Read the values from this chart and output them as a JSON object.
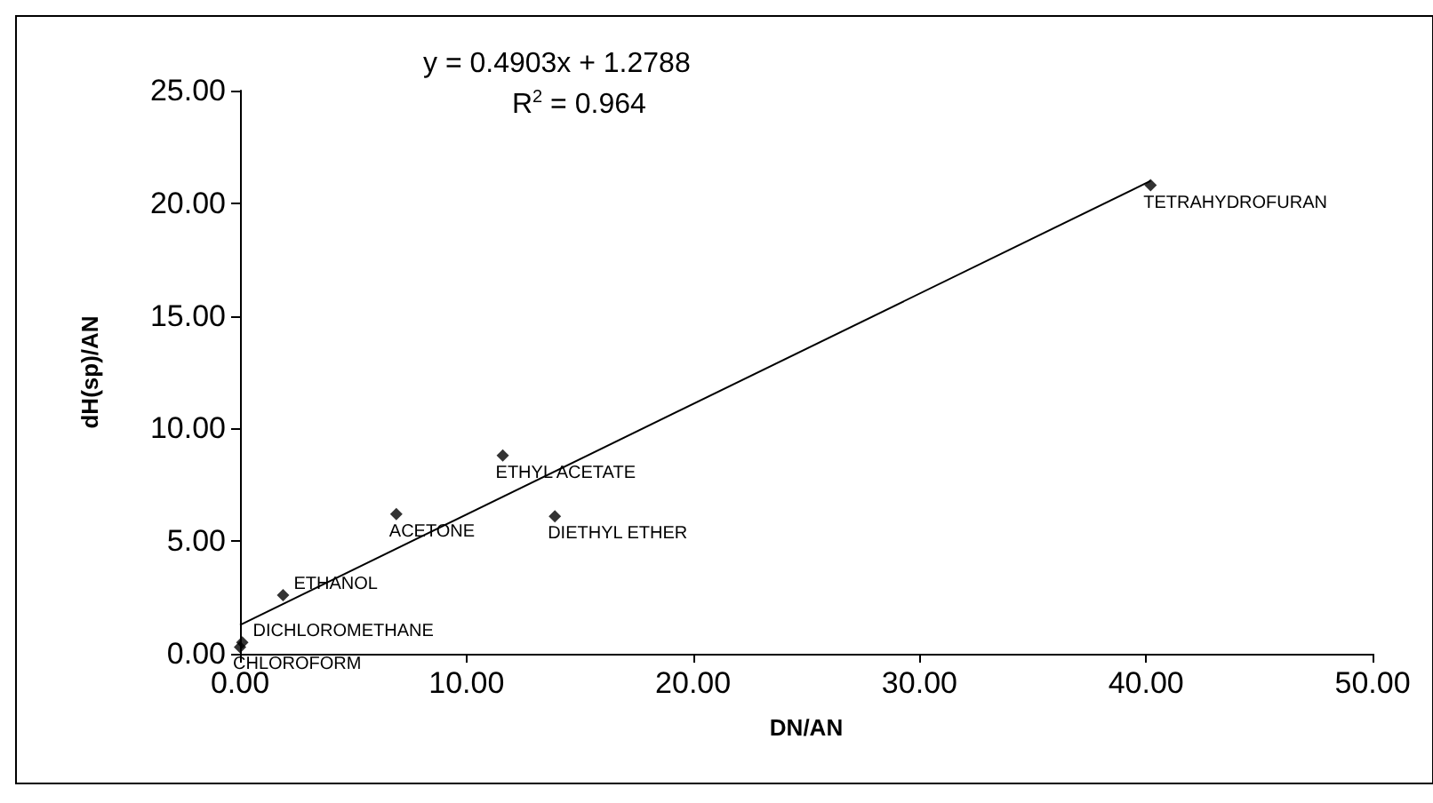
{
  "chart_data": {
    "type": "scatter",
    "xlabel": "DN/AN",
    "ylabel": "dH(sp)/AN",
    "marker": "diamond",
    "grid": false,
    "xlim": [
      0,
      50
    ],
    "ylim": [
      0,
      25
    ],
    "xticks": [
      {
        "value": 0,
        "label": "0.00"
      },
      {
        "value": 10,
        "label": "10.00"
      },
      {
        "value": 20,
        "label": "20.00"
      },
      {
        "value": 30,
        "label": "30.00"
      },
      {
        "value": 40,
        "label": "40.00"
      },
      {
        "value": 50,
        "label": "50.00"
      }
    ],
    "yticks": [
      {
        "value": 0,
        "label": "0.00"
      },
      {
        "value": 5,
        "label": "5.00"
      },
      {
        "value": 10,
        "label": "10.00"
      },
      {
        "value": 15,
        "label": "15.00"
      },
      {
        "value": 20,
        "label": "20.00"
      },
      {
        "value": 25,
        "label": "25.00"
      }
    ],
    "series": [
      {
        "type": "scatter",
        "color": "#000000",
        "x": [
          0,
          0.1,
          1.9,
          6.9,
          11.6,
          13.9,
          40.2
        ],
        "values": [
          0.3,
          0.5,
          2.6,
          6.2,
          8.8,
          6.1,
          20.8
        ]
      },
      {
        "type": "line",
        "color": "#000000",
        "marker": "none",
        "line_style": "solid",
        "x": [
          0,
          40.2
        ],
        "values": [
          1.28,
          20.99
        ]
      }
    ],
    "annotations": [
      "y = 0.4903x + 1.2788",
      "R$^{2}$ = 0.964",
      {
        "text": "CHLOROFORM",
        "x": 0,
        "y": 0.3
      },
      {
        "text": "DICHLOROMETHANE",
        "x": 0.1,
        "y": 0.5
      },
      {
        "text": "ETHANOL",
        "x": 1.9,
        "y": 2.6
      },
      {
        "text": "ACETONE",
        "x": 6.9,
        "y": 6.2
      },
      {
        "text": "ETHYL ACETATE",
        "x": 11.6,
        "y": 8.8
      },
      {
        "text": "DIETHYL ETHER",
        "x": 13.9,
        "y": 6.1
      },
      {
        "text": "TETRAHYDROFURAN",
        "x": 40.2,
        "y": 20.8
      }
    ]
  }
}
